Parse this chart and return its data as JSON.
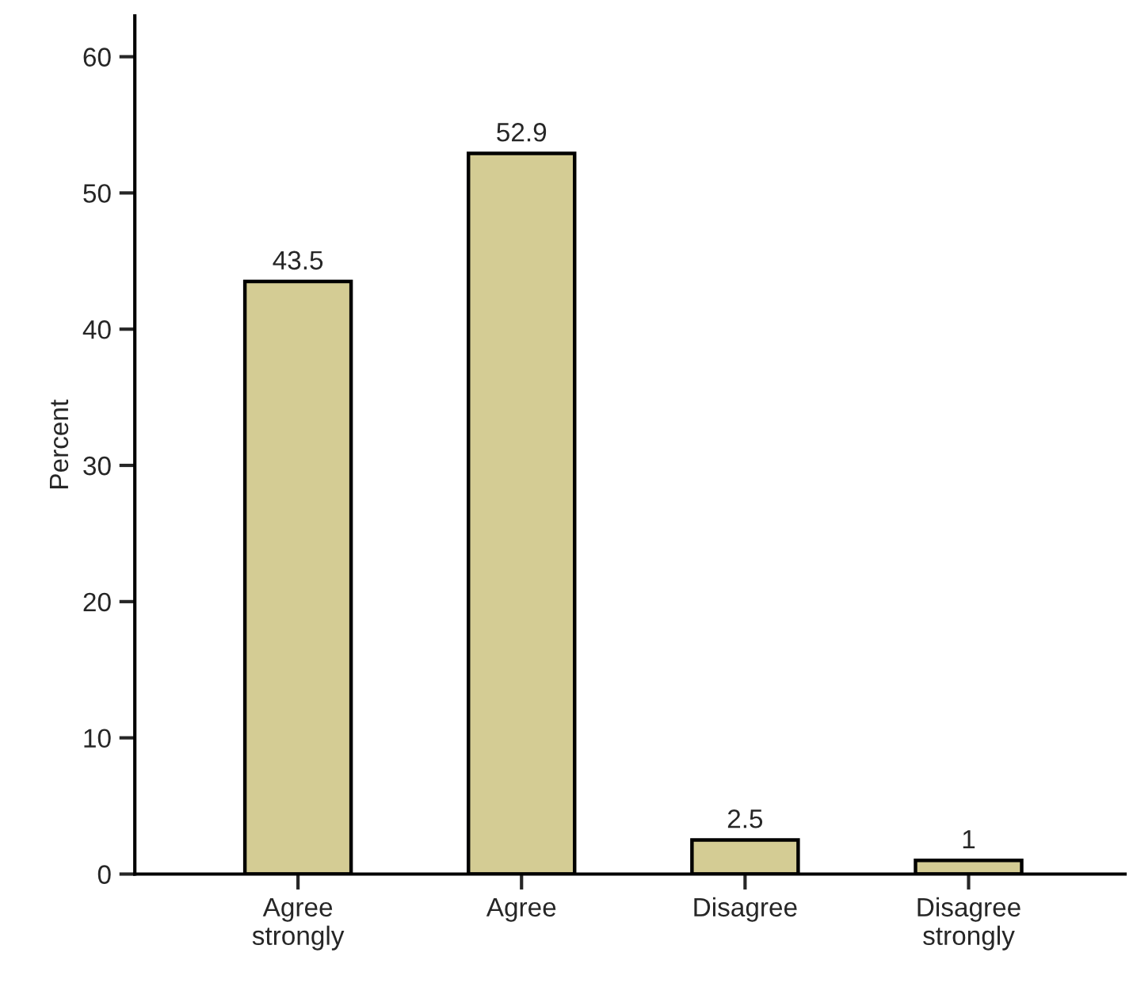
{
  "chart_data": {
    "type": "bar",
    "ylabel": "Percent",
    "categories": [
      "Agree\nstrongly",
      "Agree",
      "Disagree",
      "Disagree\nstrongly"
    ],
    "values": [
      43.5,
      52.9,
      2.5,
      1
    ],
    "color": "#d4cc94",
    "ylim": [
      0,
      63
    ],
    "yticks": [
      0,
      10,
      20,
      30,
      40,
      50,
      60
    ],
    "data_labels": true,
    "grid": false,
    "legend": false
  }
}
